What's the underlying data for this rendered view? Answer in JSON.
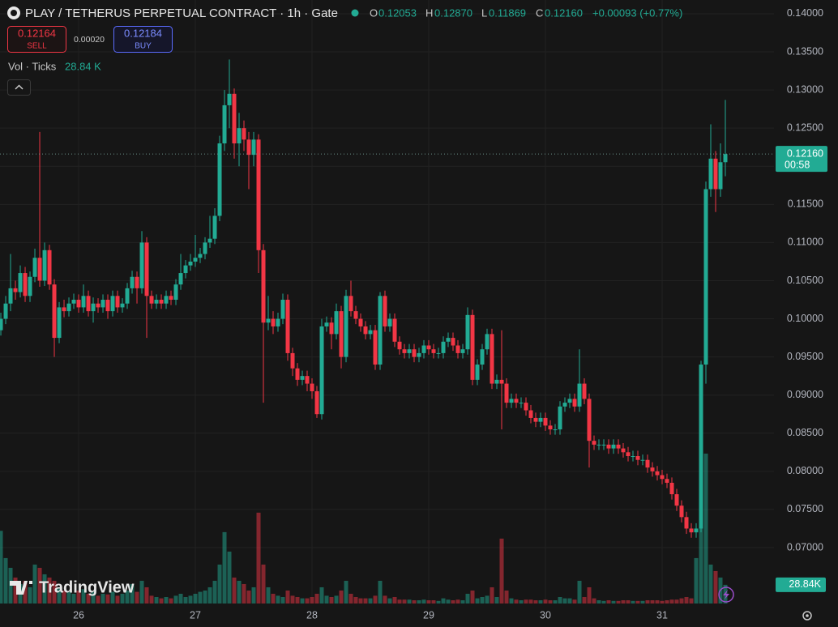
{
  "chart_data": {
    "type": "candlestick",
    "title": "PLAY / TETHERUS PERPETUAL CONTRACT · 1h · Gate",
    "legend": {
      "o_label": "O",
      "o": "0.12053",
      "h_label": "H",
      "h": "0.12870",
      "l_label": "L",
      "l": "0.11869",
      "c_label": "C",
      "c": "0.12160",
      "change": "+0.00093 (+0.77%)"
    },
    "trade": {
      "sell_price": "0.12164",
      "sell": "SELL",
      "spread": "0.00020",
      "buy_price": "0.12184",
      "buy": "BUY"
    },
    "volume_legend": {
      "name": "Vol · Ticks",
      "value": "28.84 K"
    },
    "price_badge": {
      "price": "0.12160",
      "countdown": "00:58"
    },
    "volume_badge": "28.84K",
    "logo": "TradingView",
    "up_color": "#22ab94",
    "down_color": "#f23645",
    "grid": true,
    "xlim": [
      -0.17,
      159
    ],
    "xticks": [
      {
        "value": 16,
        "label": "26"
      },
      {
        "value": 40,
        "label": "27"
      },
      {
        "value": 64,
        "label": "28"
      },
      {
        "value": 88,
        "label": "29"
      },
      {
        "value": 112,
        "label": "30"
      },
      {
        "value": 136,
        "label": "31"
      }
    ],
    "ylim": [
      0.06267,
      0.1418
    ],
    "yticks": [
      {
        "value": 0.14,
        "label": "0.14000"
      },
      {
        "value": 0.135,
        "label": "0.13500"
      },
      {
        "value": 0.13,
        "label": "0.13000"
      },
      {
        "value": 0.125,
        "label": "0.12500"
      },
      {
        "value": 0.12,
        "label": "0.12000"
      },
      {
        "value": 0.115,
        "label": "0.11500"
      },
      {
        "value": 0.11,
        "label": "0.11000"
      },
      {
        "value": 0.105,
        "label": "0.10500"
      },
      {
        "value": 0.1,
        "label": "0.10000"
      },
      {
        "value": 0.095,
        "label": "0.09500"
      },
      {
        "value": 0.09,
        "label": "0.09000"
      },
      {
        "value": 0.085,
        "label": "0.08500"
      },
      {
        "value": 0.08,
        "label": "0.08000"
      },
      {
        "value": 0.075,
        "label": "0.07500"
      },
      {
        "value": 0.07,
        "label": "0.07000"
      }
    ],
    "open": [
      0.0985,
      0.1,
      0.102,
      0.104,
      0.1035,
      0.106,
      0.103,
      0.1055,
      0.108,
      0.105,
      0.109,
      0.1045,
      0.0975,
      0.1015,
      0.101,
      0.102,
      0.1025,
      0.1015,
      0.103,
      0.101,
      0.102,
      0.1015,
      0.1025,
      0.101,
      0.103,
      0.1015,
      0.102,
      0.104,
      0.1055,
      0.104,
      0.11,
      0.103,
      0.102,
      0.1025,
      0.102,
      0.103,
      0.1025,
      0.1045,
      0.106,
      0.107,
      0.1075,
      0.108,
      0.1085,
      0.11,
      0.1105,
      0.1135,
      0.123,
      0.128,
      0.1295,
      0.123,
      0.125,
      0.1235,
      0.1215,
      0.1235,
      0.109,
      0.0995,
      0.1,
      0.099,
      0.1,
      0.1025,
      0.0955,
      0.0935,
      0.092,
      0.0925,
      0.0915,
      0.0905,
      0.0875,
      0.099,
      0.0995,
      0.098,
      0.101,
      0.095,
      0.103,
      0.101,
      0.1,
      0.099,
      0.098,
      0.0985,
      0.094,
      0.103,
      0.099,
      0.1,
      0.097,
      0.096,
      0.0955,
      0.096,
      0.095,
      0.0955,
      0.0965,
      0.096,
      0.0955,
      0.0955,
      0.097,
      0.0975,
      0.0965,
      0.0955,
      0.096,
      0.1005,
      0.092,
      0.094,
      0.096,
      0.098,
      0.0915,
      0.092,
      0.0915,
      0.089,
      0.0895,
      0.089,
      0.089,
      0.088,
      0.087,
      0.0865,
      0.087,
      0.086,
      0.0855,
      0.0855,
      0.0885,
      0.089,
      0.0895,
      0.0885,
      0.0915,
      0.0895,
      0.084,
      0.0835,
      0.0835,
      0.0835,
      0.083,
      0.0835,
      0.083,
      0.0825,
      0.082,
      0.082,
      0.0815,
      0.0815,
      0.0805,
      0.08,
      0.0795,
      0.079,
      0.0785,
      0.077,
      0.0755,
      0.074,
      0.0725,
      0.072,
      0.0725,
      0.094,
      0.117,
      0.121,
      0.117,
      0.12053
    ],
    "high": [
      0.1008,
      0.103,
      0.1085,
      0.105,
      0.107,
      0.1068,
      0.1062,
      0.1092,
      0.1245,
      0.11,
      0.1097,
      0.1052,
      0.1022,
      0.1025,
      0.1028,
      0.1033,
      0.1032,
      0.1045,
      0.1037,
      0.1028,
      0.1027,
      0.1032,
      0.1032,
      0.1037,
      0.1037,
      0.1027,
      0.1047,
      0.1063,
      0.1062,
      0.1115,
      0.1107,
      0.1037,
      0.1032,
      0.1032,
      0.1037,
      0.1037,
      0.1052,
      0.1085,
      0.1077,
      0.1085,
      0.111,
      0.1093,
      0.1107,
      0.1135,
      0.1145,
      0.124,
      0.13,
      0.134,
      0.1302,
      0.127,
      0.126,
      0.1245,
      0.1245,
      0.1242,
      0.1098,
      0.103,
      0.101,
      0.1008,
      0.1033,
      0.1032,
      0.0962,
      0.0942,
      0.0932,
      0.0932,
      0.0922,
      0.0912,
      0.1,
      0.1003,
      0.1002,
      0.102,
      0.1017,
      0.1038,
      0.105,
      0.1017,
      0.1007,
      0.0997,
      0.0992,
      0.0992,
      0.1035,
      0.1037,
      0.1007,
      0.1007,
      0.0977,
      0.0967,
      0.0967,
      0.0967,
      0.0962,
      0.0972,
      0.0972,
      0.0967,
      0.0962,
      0.0977,
      0.0982,
      0.0982,
      0.0972,
      0.0967,
      0.1015,
      0.1012,
      0.0947,
      0.0967,
      0.0987,
      0.0987,
      0.0927,
      0.0985,
      0.0922,
      0.0902,
      0.0902,
      0.0897,
      0.0897,
      0.0887,
      0.0877,
      0.0877,
      0.0877,
      0.0867,
      0.0862,
      0.0892,
      0.0897,
      0.0902,
      0.0902,
      0.096,
      0.0922,
      0.0902,
      0.0847,
      0.0842,
      0.0842,
      0.0842,
      0.0842,
      0.0842,
      0.0837,
      0.0832,
      0.0827,
      0.0827,
      0.0822,
      0.0822,
      0.0812,
      0.0807,
      0.0802,
      0.0797,
      0.0792,
      0.0777,
      0.0762,
      0.0747,
      0.0732,
      0.0732,
      0.0945,
      0.118,
      0.1255,
      0.122,
      0.123,
      0.1287
    ],
    "low": [
      0.0978,
      0.0993,
      0.101,
      0.1025,
      0.1028,
      0.1022,
      0.1022,
      0.1048,
      0.1042,
      0.1043,
      0.1038,
      0.095,
      0.0968,
      0.1002,
      0.1003,
      0.1013,
      0.1008,
      0.1008,
      0.1003,
      0.0995,
      0.1008,
      0.1008,
      0.1,
      0.1003,
      0.1008,
      0.1008,
      0.1013,
      0.1033,
      0.102,
      0.1033,
      0.0975,
      0.1013,
      0.1013,
      0.1013,
      0.1013,
      0.1018,
      0.1018,
      0.1038,
      0.1053,
      0.1063,
      0.1068,
      0.1073,
      0.1078,
      0.1093,
      0.1098,
      0.1128,
      0.122,
      0.125,
      0.121,
      0.12,
      0.122,
      0.117,
      0.12,
      0.106,
      0.089,
      0.0985,
      0.098,
      0.0983,
      0.0993,
      0.0945,
      0.0925,
      0.0912,
      0.0913,
      0.0905,
      0.0895,
      0.087,
      0.0868,
      0.0983,
      0.096,
      0.0973,
      0.0935,
      0.0943,
      0.1003,
      0.0993,
      0.0983,
      0.0973,
      0.0973,
      0.0933,
      0.0933,
      0.0983,
      0.0983,
      0.0963,
      0.0953,
      0.0948,
      0.0948,
      0.0943,
      0.0943,
      0.0948,
      0.0953,
      0.0948,
      0.0948,
      0.0948,
      0.0963,
      0.0958,
      0.0948,
      0.0948,
      0.0953,
      0.0913,
      0.0913,
      0.0933,
      0.0953,
      0.0908,
      0.0908,
      0.0855,
      0.0883,
      0.0883,
      0.0883,
      0.0883,
      0.0873,
      0.0863,
      0.0858,
      0.0858,
      0.0853,
      0.0848,
      0.0848,
      0.0848,
      0.0878,
      0.0883,
      0.0878,
      0.0878,
      0.0888,
      0.0805,
      0.0828,
      0.0828,
      0.0828,
      0.0823,
      0.0823,
      0.0823,
      0.0818,
      0.0813,
      0.0813,
      0.0808,
      0.0808,
      0.0798,
      0.0793,
      0.0788,
      0.0783,
      0.0778,
      0.0763,
      0.0748,
      0.0733,
      0.0718,
      0.0713,
      0.0713,
      0.072,
      0.0915,
      0.116,
      0.114,
      0.116,
      0.11869
    ],
    "close": [
      0.1,
      0.102,
      0.104,
      0.1035,
      0.106,
      0.103,
      0.1055,
      0.108,
      0.105,
      0.109,
      0.1045,
      0.0975,
      0.1015,
      0.101,
      0.102,
      0.1025,
      0.1015,
      0.103,
      0.101,
      0.102,
      0.1015,
      0.1025,
      0.101,
      0.103,
      0.1015,
      0.102,
      0.104,
      0.1055,
      0.104,
      0.11,
      0.103,
      0.102,
      0.1025,
      0.102,
      0.103,
      0.1025,
      0.1045,
      0.106,
      0.107,
      0.1075,
      0.108,
      0.1085,
      0.11,
      0.1105,
      0.1135,
      0.123,
      0.128,
      0.1295,
      0.123,
      0.125,
      0.1235,
      0.1215,
      0.1235,
      0.109,
      0.0995,
      0.1,
      0.099,
      0.1,
      0.1025,
      0.0955,
      0.0935,
      0.092,
      0.0925,
      0.0915,
      0.0905,
      0.0875,
      0.099,
      0.0995,
      0.098,
      0.101,
      0.095,
      0.103,
      0.101,
      0.1,
      0.099,
      0.098,
      0.0985,
      0.094,
      0.103,
      0.099,
      0.1,
      0.097,
      0.096,
      0.0955,
      0.096,
      0.095,
      0.0955,
      0.0965,
      0.096,
      0.0955,
      0.0955,
      0.097,
      0.0975,
      0.0965,
      0.0955,
      0.096,
      0.1005,
      0.092,
      0.094,
      0.096,
      0.098,
      0.0915,
      0.092,
      0.0915,
      0.089,
      0.0895,
      0.089,
      0.089,
      0.088,
      0.087,
      0.0865,
      0.087,
      0.086,
      0.0855,
      0.0855,
      0.0885,
      0.089,
      0.0895,
      0.0885,
      0.0915,
      0.0895,
      0.084,
      0.0835,
      0.0835,
      0.0835,
      0.083,
      0.0835,
      0.083,
      0.0825,
      0.082,
      0.082,
      0.0815,
      0.0815,
      0.0805,
      0.08,
      0.0795,
      0.079,
      0.0785,
      0.077,
      0.0755,
      0.074,
      0.0725,
      0.072,
      0.0725,
      0.094,
      0.117,
      0.121,
      0.117,
      0.12053,
      0.1216
    ],
    "volume": [
      112000,
      70000,
      55000,
      40000,
      30000,
      35000,
      25000,
      60000,
      55000,
      45000,
      40000,
      35000,
      25000,
      20000,
      18000,
      15000,
      20000,
      22000,
      15000,
      18000,
      12000,
      15000,
      14000,
      18000,
      12000,
      15000,
      20000,
      30000,
      18000,
      35000,
      25000,
      12000,
      10000,
      8000,
      10000,
      8000,
      12000,
      15000,
      10000,
      12000,
      15000,
      18000,
      20000,
      25000,
      35000,
      60000,
      110000,
      80000,
      40000,
      35000,
      30000,
      20000,
      25000,
      140000,
      60000,
      25000,
      15000,
      12000,
      10000,
      20000,
      12000,
      10000,
      8000,
      8000,
      10000,
      15000,
      25000,
      12000,
      10000,
      12000,
      20000,
      35000,
      15000,
      10000,
      8000,
      8000,
      8000,
      12000,
      35000,
      12000,
      8000,
      10000,
      6000,
      6000,
      6000,
      5000,
      5000,
      6000,
      5000,
      5000,
      4000,
      8000,
      6000,
      5000,
      6000,
      5000,
      15000,
      20000,
      8000,
      10000,
      12000,
      25000,
      10000,
      100000,
      20000,
      8000,
      6000,
      5000,
      6000,
      6000,
      5000,
      5000,
      6000,
      5000,
      5000,
      10000,
      8000,
      8000,
      6000,
      35000,
      10000,
      25000,
      8000,
      5000,
      4000,
      5000,
      4000,
      4000,
      5000,
      5000,
      4000,
      4000,
      4000,
      5000,
      5000,
      5000,
      4000,
      5000,
      6000,
      6000,
      8000,
      10000,
      8000,
      70000,
      362000,
      231000,
      60000,
      50000,
      40000,
      28840
    ]
  }
}
